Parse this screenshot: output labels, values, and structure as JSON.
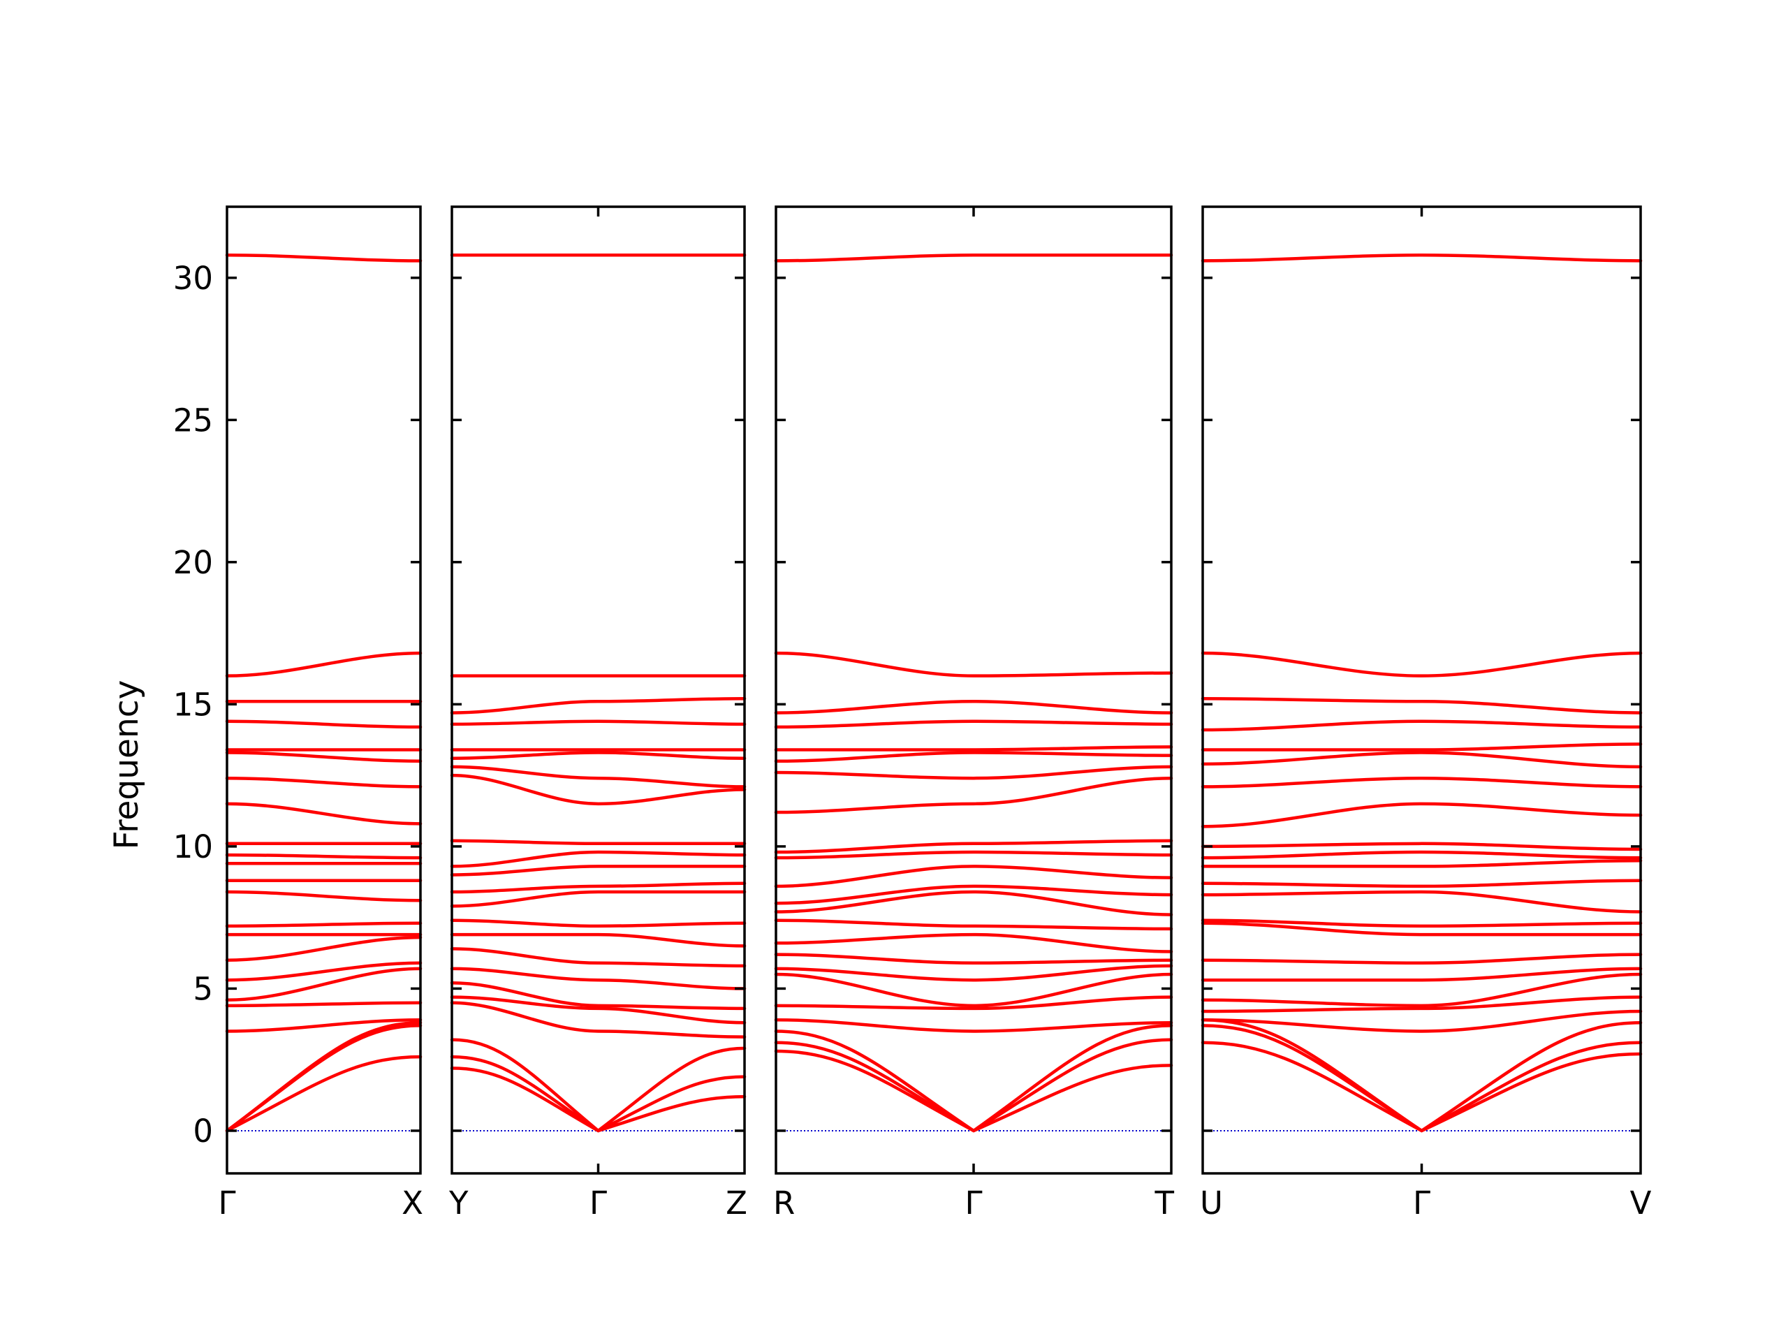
{
  "chart_data": {
    "type": "line",
    "ylabel": "Frequency",
    "ylim": [
      -1.5,
      32.5
    ],
    "yticks": [
      0,
      5,
      10,
      15,
      20,
      25,
      30
    ],
    "colors": {
      "bands": "#ff0000",
      "zero_line": "#0000cc",
      "frame": "#000000"
    },
    "zero_line": {
      "y": 0,
      "style": "dotted"
    },
    "panels": [
      {
        "xticks": [
          "Γ",
          "X"
        ],
        "bands": [
          [
            0,
            2.6
          ],
          [
            0,
            3.7
          ],
          [
            0,
            3.8
          ],
          [
            3.5,
            3.9
          ],
          [
            4.4,
            4.5
          ],
          [
            4.6,
            5.7
          ],
          [
            5.3,
            5.9
          ],
          [
            6.0,
            6.8
          ],
          [
            6.9,
            6.9
          ],
          [
            7.2,
            7.3
          ],
          [
            8.4,
            8.1
          ],
          [
            8.8,
            8.8
          ],
          [
            9.4,
            9.4
          ],
          [
            9.7,
            9.6
          ],
          [
            10.1,
            10.1
          ],
          [
            11.5,
            10.8
          ],
          [
            12.4,
            12.1
          ],
          [
            13.3,
            13.0
          ],
          [
            13.4,
            13.4
          ],
          [
            14.4,
            14.2
          ],
          [
            15.1,
            15.1
          ],
          [
            16.0,
            16.8
          ],
          [
            30.8,
            30.6
          ]
        ]
      },
      {
        "xticks": [
          "Y",
          "Γ",
          "Z"
        ],
        "bands": [
          [
            2.2,
            0,
            1.2
          ],
          [
            2.6,
            0,
            1.9
          ],
          [
            3.2,
            0,
            2.9
          ],
          [
            4.5,
            3.5,
            3.3
          ],
          [
            4.7,
            4.3,
            3.8
          ],
          [
            5.2,
            4.4,
            4.3
          ],
          [
            5.7,
            5.3,
            5.0
          ],
          [
            6.4,
            5.9,
            5.8
          ],
          [
            6.9,
            6.9,
            6.5
          ],
          [
            7.4,
            7.2,
            7.3
          ],
          [
            7.9,
            8.4,
            8.4
          ],
          [
            8.4,
            8.6,
            8.7
          ],
          [
            9.0,
            9.3,
            9.3
          ],
          [
            9.3,
            9.8,
            9.7
          ],
          [
            10.2,
            10.1,
            10.1
          ],
          [
            12.5,
            11.5,
            12.0
          ],
          [
            12.8,
            12.4,
            12.1
          ],
          [
            13.1,
            13.3,
            13.1
          ],
          [
            13.4,
            13.4,
            13.4
          ],
          [
            14.3,
            14.4,
            14.3
          ],
          [
            14.7,
            15.1,
            15.2
          ],
          [
            16.0,
            16.0,
            16.0
          ],
          [
            30.8,
            30.8,
            30.8
          ]
        ]
      },
      {
        "xticks": [
          "R",
          "Γ",
          "T"
        ],
        "bands": [
          [
            2.8,
            0,
            2.3
          ],
          [
            3.1,
            0,
            3.2
          ],
          [
            3.5,
            0,
            3.7
          ],
          [
            3.9,
            3.5,
            3.8
          ],
          [
            4.4,
            4.3,
            4.7
          ],
          [
            5.5,
            4.4,
            5.5
          ],
          [
            5.7,
            5.3,
            5.8
          ],
          [
            6.2,
            5.9,
            6.0
          ],
          [
            6.6,
            6.9,
            6.3
          ],
          [
            7.4,
            7.2,
            7.1
          ],
          [
            7.7,
            8.4,
            7.6
          ],
          [
            8.0,
            8.6,
            8.3
          ],
          [
            8.6,
            9.3,
            8.9
          ],
          [
            9.6,
            9.8,
            9.7
          ],
          [
            9.8,
            10.1,
            10.2
          ],
          [
            11.2,
            11.5,
            12.4
          ],
          [
            12.6,
            12.4,
            12.8
          ],
          [
            13.0,
            13.3,
            13.2
          ],
          [
            13.4,
            13.4,
            13.5
          ],
          [
            14.2,
            14.4,
            14.3
          ],
          [
            14.7,
            15.1,
            14.7
          ],
          [
            16.8,
            16.0,
            16.1
          ],
          [
            30.6,
            30.8,
            30.8
          ]
        ]
      },
      {
        "xticks": [
          "U",
          "Γ",
          "V"
        ],
        "bands": [
          [
            3.1,
            0,
            2.7
          ],
          [
            3.7,
            0,
            3.1
          ],
          [
            3.9,
            0,
            3.8
          ],
          [
            3.9,
            3.5,
            4.2
          ],
          [
            4.2,
            4.3,
            4.7
          ],
          [
            4.6,
            4.4,
            5.5
          ],
          [
            5.3,
            5.3,
            5.7
          ],
          [
            6.0,
            5.9,
            6.2
          ],
          [
            7.3,
            6.9,
            6.9
          ],
          [
            7.4,
            7.2,
            7.3
          ],
          [
            8.3,
            8.4,
            7.7
          ],
          [
            8.7,
            8.6,
            8.8
          ],
          [
            9.3,
            9.3,
            9.5
          ],
          [
            9.6,
            9.8,
            9.6
          ],
          [
            10.0,
            10.1,
            9.9
          ],
          [
            10.7,
            11.5,
            11.1
          ],
          [
            12.1,
            12.4,
            12.1
          ],
          [
            12.9,
            13.3,
            12.8
          ],
          [
            13.4,
            13.4,
            13.6
          ],
          [
            14.1,
            14.4,
            14.2
          ],
          [
            15.2,
            15.1,
            14.7
          ],
          [
            16.8,
            16.0,
            16.8
          ],
          [
            30.6,
            30.8,
            30.6
          ]
        ]
      }
    ]
  }
}
